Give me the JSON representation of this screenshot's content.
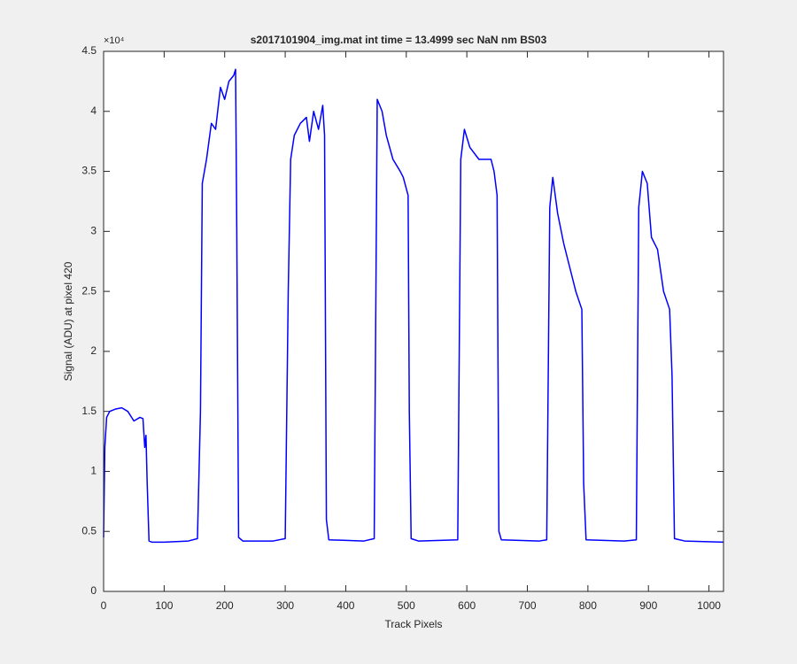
{
  "chart_data": {
    "type": "line",
    "title": "s2017101904_img.mat int time = 13.4999 sec  NaN nm BS03",
    "x_label": "Track Pixels",
    "y_label": "Signal (ADU) at pixel 420",
    "y_multiplier": "×10⁴",
    "xlim": [
      0,
      1024
    ],
    "xticks": [
      0,
      100,
      200,
      300,
      400,
      500,
      600,
      700,
      800,
      900,
      1000
    ],
    "ylim": [
      0,
      4.5
    ],
    "yticks": [
      0,
      0.5,
      1,
      1.5,
      2,
      2.5,
      3,
      3.5,
      4,
      4.5
    ],
    "grid": false,
    "series": [
      {
        "color": "#0000ff",
        "x": [
          0,
          2,
          5,
          10,
          20,
          30,
          40,
          50,
          60,
          65,
          68,
          70,
          72,
          75,
          80,
          100,
          140,
          155,
          160,
          163,
          170,
          178,
          185,
          193,
          200,
          207,
          215,
          218,
          220,
          223,
          230,
          280,
          300,
          305,
          309,
          315,
          325,
          335,
          340,
          347,
          355,
          362,
          365,
          368,
          372,
          430,
          447,
          452,
          460,
          467,
          478,
          490,
          495,
          503,
          505,
          508,
          520,
          585,
          590,
          596,
          605,
          620,
          640,
          645,
          650,
          653,
          657,
          720,
          732,
          737,
          742,
          750,
          760,
          770,
          780,
          790,
          793,
          797,
          860,
          880,
          884,
          890,
          898,
          905,
          915,
          925,
          935,
          939,
          943,
          960,
          1024
        ],
        "values": [
          0.45,
          1.2,
          1.45,
          1.5,
          1.52,
          1.53,
          1.5,
          1.42,
          1.45,
          1.44,
          1.2,
          1.3,
          0.9,
          0.42,
          0.41,
          0.41,
          0.42,
          0.44,
          1.5,
          3.4,
          3.6,
          3.9,
          3.85,
          4.2,
          4.1,
          4.25,
          4.3,
          4.35,
          3.0,
          0.45,
          0.42,
          0.42,
          0.44,
          2.5,
          3.6,
          3.8,
          3.9,
          3.95,
          3.75,
          4.0,
          3.85,
          4.05,
          3.8,
          0.6,
          0.43,
          0.42,
          0.44,
          4.1,
          4.0,
          3.8,
          3.6,
          3.5,
          3.45,
          3.3,
          1.5,
          0.44,
          0.42,
          0.43,
          3.6,
          3.85,
          3.7,
          3.6,
          3.6,
          3.5,
          3.3,
          0.5,
          0.43,
          0.42,
          0.43,
          3.2,
          3.45,
          3.15,
          2.9,
          2.7,
          2.5,
          2.35,
          0.9,
          0.43,
          0.42,
          0.43,
          3.2,
          3.5,
          3.4,
          2.95,
          2.85,
          2.5,
          2.35,
          1.8,
          0.44,
          0.42,
          0.41
        ]
      }
    ]
  }
}
